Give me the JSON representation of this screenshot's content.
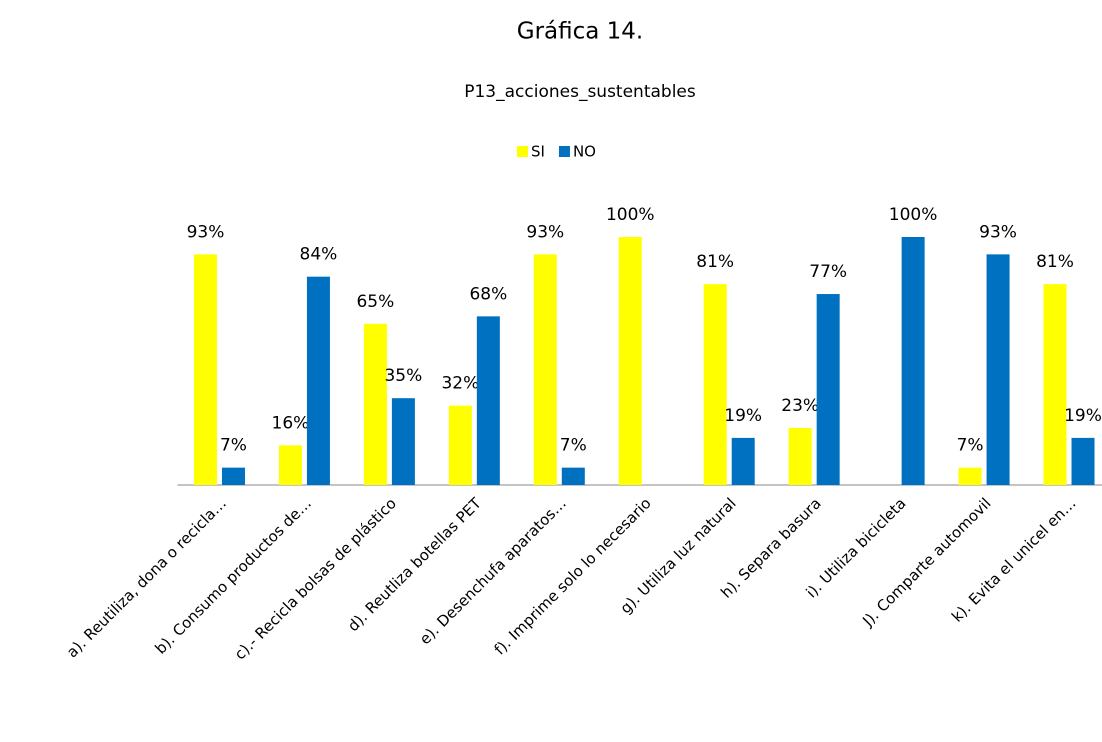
{
  "chart_data": {
    "type": "bar",
    "title": "Gráfica 14.",
    "subtitle": "P13_acciones_sustentables",
    "categories": [
      "a). Reutiliza, dona o recicla…",
      "b). Consumo productos de…",
      "c).- Recicla bolsas de plástico",
      "d). Reutliza botellas PET",
      "e). Desenchufa aparatos…",
      "f). Imprime  solo lo necesario",
      "g). Utiliza luz natural",
      "h). Separa basura",
      "i). Utiliza bicicleta",
      "J). Comparte automovil",
      "k). Evita el unicel en…"
    ],
    "series": [
      {
        "name": "SI",
        "color": "#ffff00",
        "values": [
          93,
          16,
          65,
          32,
          93,
          100,
          81,
          23,
          null,
          7,
          81
        ],
        "value_labels": [
          "93%",
          "16%",
          "65%",
          "32%",
          "93%",
          "100%",
          "81%",
          "23%",
          null,
          "7%",
          "81%"
        ]
      },
      {
        "name": "NO",
        "color": "#0070c0",
        "values": [
          7,
          84,
          35,
          68,
          7,
          null,
          19,
          77,
          100,
          93,
          19
        ],
        "value_labels": [
          "7%",
          "84%",
          "35%",
          "68%",
          "7%",
          null,
          "19%",
          "77%",
          "100%",
          "93%",
          "19%"
        ]
      }
    ],
    "legend": "top"
  }
}
